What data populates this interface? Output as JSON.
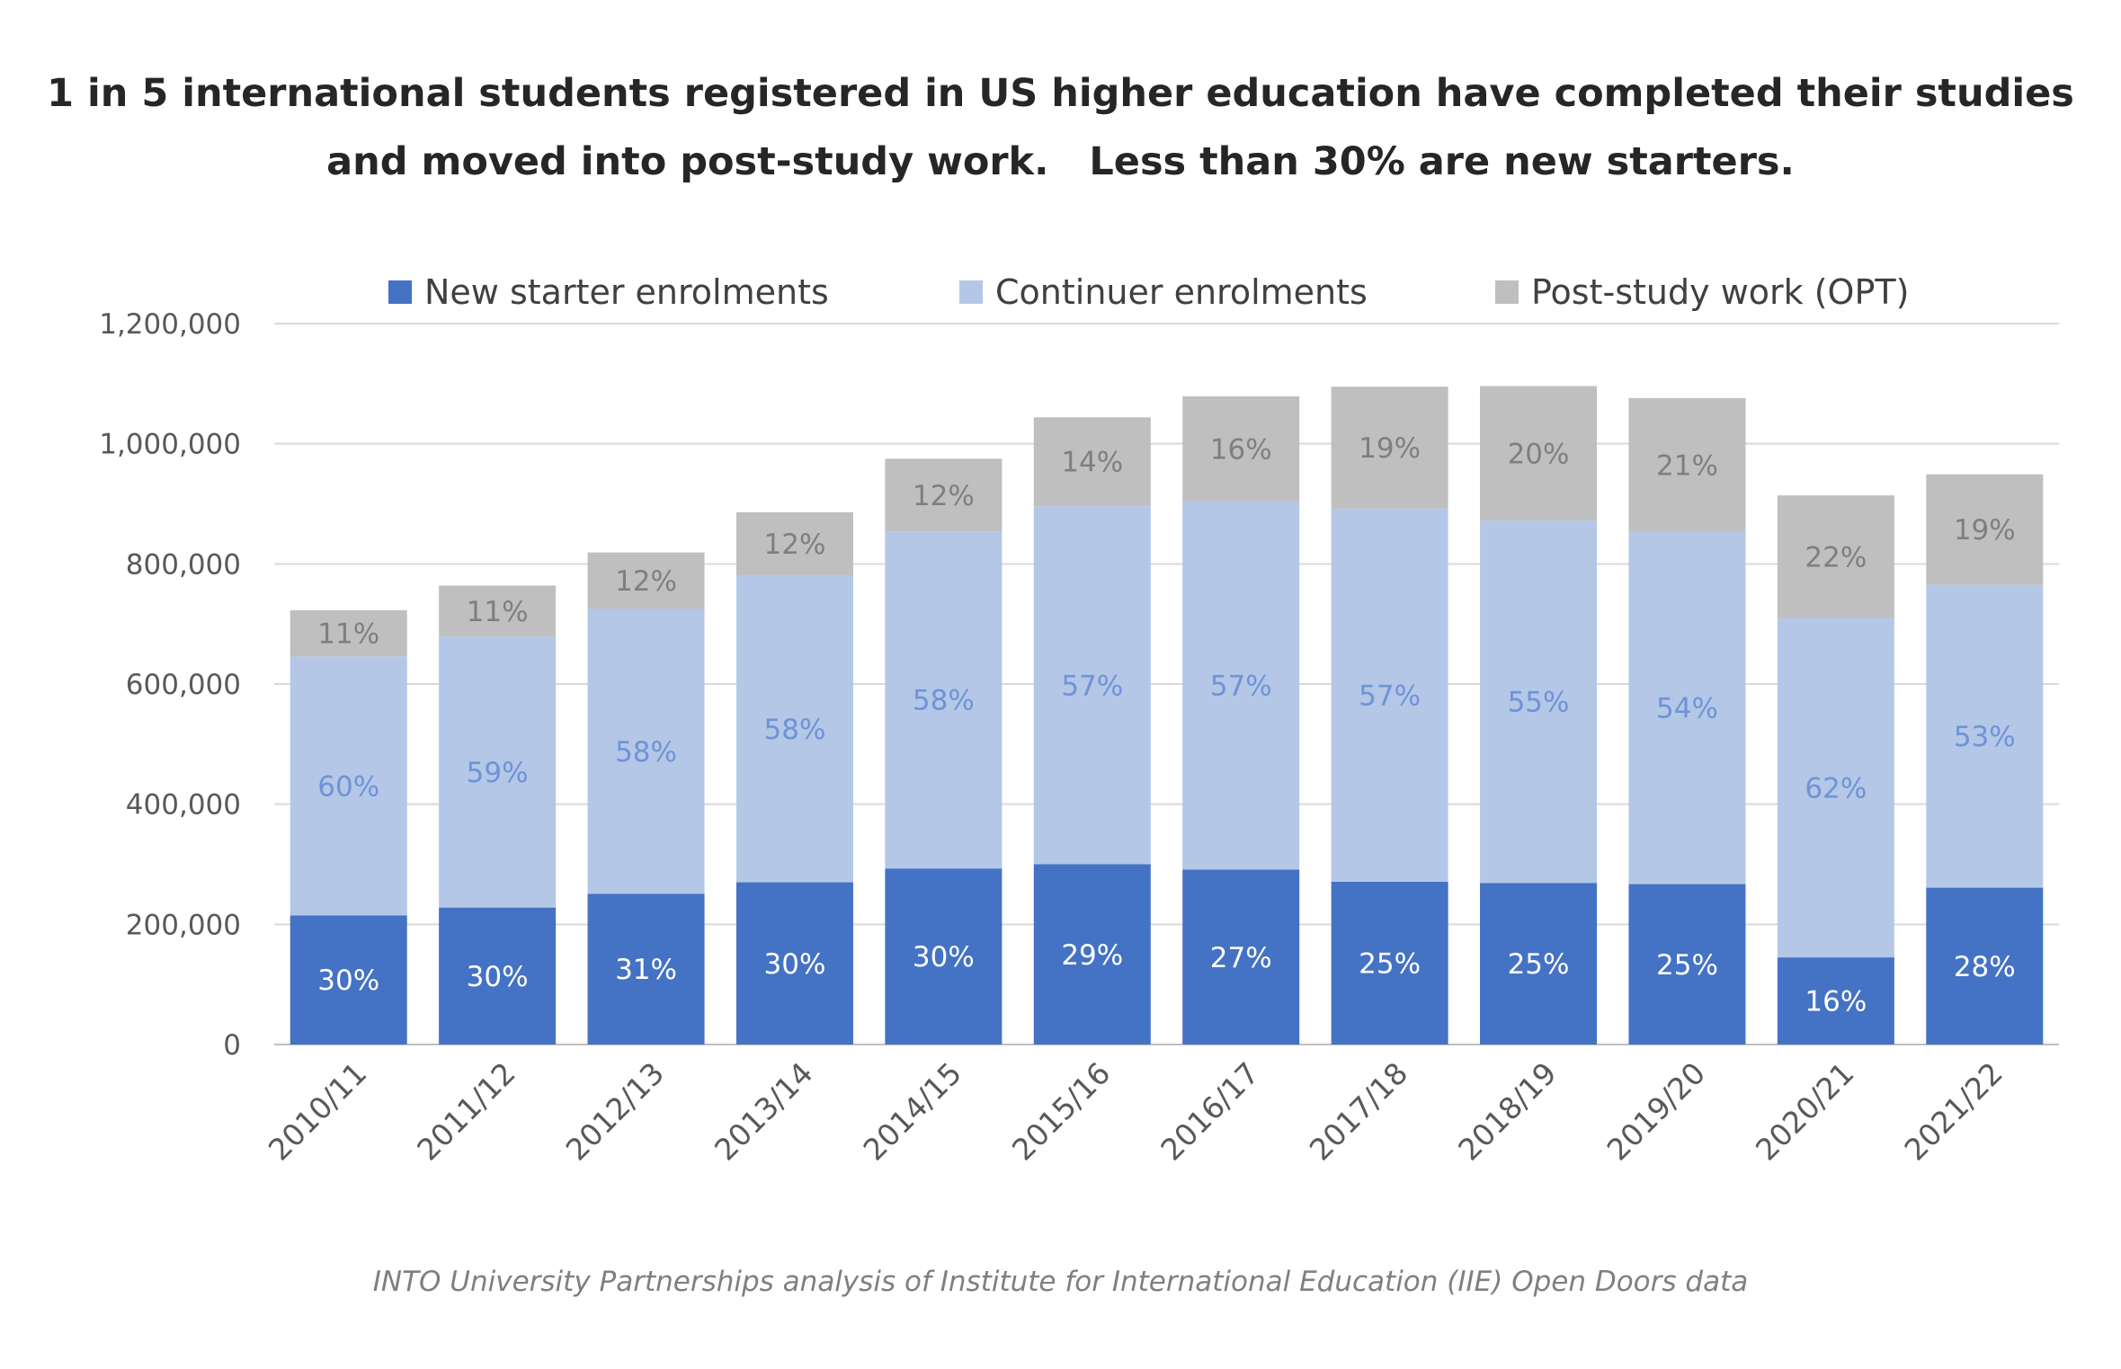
{
  "title_lines": [
    "1 in 5 international students registered in US higher education have completed their studies",
    "and moved into post-study work.   Less than 30% are new starters."
  ],
  "source": "INTO University Partnerships analysis of Institute for International Education (IIE) Open Doors data",
  "chart_data": {
    "type": "bar",
    "stacked": true,
    "title": "1 in 5 international students registered in US higher education have completed their studies and moved into post-study work.   Less than 30% are new starters.",
    "xlabel": "",
    "ylabel": "",
    "ylim": [
      0,
      1200000
    ],
    "yticks": [
      0,
      200000,
      400000,
      600000,
      800000,
      1000000,
      1200000
    ],
    "ytick_labels": [
      "0",
      "200,000",
      "400,000",
      "600,000",
      "800,000",
      "1,000,000",
      "1,200,000"
    ],
    "grid": true,
    "legend_position": "top",
    "categories": [
      "2010/11",
      "2011/12",
      "2012/13",
      "2013/14",
      "2014/15",
      "2015/16",
      "2016/17",
      "2017/18",
      "2018/19",
      "2019/20",
      "2020/21",
      "2021/22"
    ],
    "series": [
      {
        "name": "New starter enrolments",
        "color": "#4472c4",
        "label_color": "#ffffff",
        "values": [
          215000,
          228000,
          251000,
          270000,
          293000,
          300000,
          291000,
          271000,
          269000,
          267000,
          145000,
          261000
        ],
        "labels": [
          "30%",
          "30%",
          "31%",
          "30%",
          "30%",
          "29%",
          "27%",
          "25%",
          "25%",
          "25%",
          "16%",
          "28%"
        ]
      },
      {
        "name": "Continuer enrolments",
        "color": "#b4c7e7",
        "label_color": "#6f93d6",
        "values": [
          431000,
          451000,
          474000,
          511000,
          561000,
          596000,
          613000,
          621000,
          603000,
          586000,
          565000,
          504000
        ],
        "labels": [
          "60%",
          "59%",
          "58%",
          "58%",
          "58%",
          "57%",
          "57%",
          "57%",
          "55%",
          "54%",
          "62%",
          "53%"
        ]
      },
      {
        "name": "Post-study work (OPT)",
        "color": "#bfbfbf",
        "label_color": "#7f7f7f",
        "values": [
          77000,
          85000,
          94000,
          105000,
          121000,
          148000,
          175000,
          203000,
          224000,
          223000,
          204000,
          184000
        ],
        "labels": [
          "11%",
          "11%",
          "12%",
          "12%",
          "12%",
          "14%",
          "16%",
          "19%",
          "20%",
          "21%",
          "22%",
          "19%"
        ]
      }
    ]
  }
}
